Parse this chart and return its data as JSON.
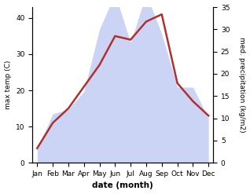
{
  "months": [
    "Jan",
    "Feb",
    "Mar",
    "Apr",
    "May",
    "Jun",
    "Jul",
    "Aug",
    "Sep",
    "Oct",
    "Nov",
    "Dec"
  ],
  "temp": [
    4,
    11,
    15,
    21,
    27,
    35,
    34,
    39,
    41,
    22,
    17,
    13
  ],
  "precip_raw": [
    3,
    11,
    12,
    16,
    30,
    38,
    27,
    38,
    29,
    17,
    17,
    10
  ],
  "temp_ylim": [
    0,
    43
  ],
  "temp_yticks": [
    0,
    10,
    20,
    30,
    40
  ],
  "precip_ylim": [
    0,
    35
  ],
  "precip_yticks": [
    0,
    5,
    10,
    15,
    20,
    25,
    30,
    35
  ],
  "precip_scale_factor": 0.777,
  "fill_color": "#b0bef0",
  "fill_alpha": 0.65,
  "line_color": "#b03030",
  "line_width": 1.8,
  "ylabel_left": "max temp (C)",
  "ylabel_right": "med. precipitation (kg/m2)",
  "xlabel": "date (month)",
  "bg_color": "#ffffff"
}
